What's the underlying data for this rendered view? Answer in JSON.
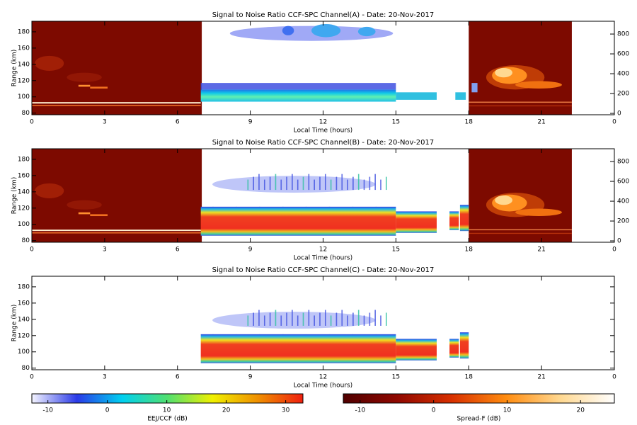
{
  "chart_data": [
    {
      "type": "heatmap",
      "title": "Signal to Noise Ratio CCF-SPC Channel(A) - Date: 20-Nov-2017",
      "xlabel": "Local Time (hours)",
      "ylabel": "Range (km)",
      "xlim": [
        0,
        24
      ],
      "xticks": [
        0,
        3,
        6,
        9,
        12,
        15,
        18,
        21,
        {
          "value": 24,
          "label": "0"
        }
      ],
      "ylim": [
        78,
        193
      ],
      "yticks": [
        80,
        100,
        120,
        140,
        160,
        180
      ],
      "y2lim": [
        -14,
        929
      ],
      "y2ticks": [
        0,
        200,
        400,
        600,
        800
      ]
    },
    {
      "type": "heatmap",
      "title": "Signal to Noise Ratio CCF-SPC Channel(B) - Date: 20-Nov-2017",
      "xlabel": "Local Time (hours)",
      "ylabel": "Range (km)",
      "xlim": [
        0,
        24
      ],
      "xticks": [
        0,
        3,
        6,
        9,
        12,
        15,
        18,
        21,
        {
          "value": 24,
          "label": "0"
        }
      ],
      "ylim": [
        78,
        193
      ],
      "yticks": [
        80,
        100,
        120,
        140,
        160,
        180
      ],
      "y2lim": [
        -14,
        929
      ],
      "y2ticks": [
        0,
        200,
        400,
        600,
        800
      ]
    },
    {
      "type": "heatmap",
      "title": "Signal to Noise Ratio CCF-SPC Channel(C) - Date: 20-Nov-2017",
      "xlabel": "Local Time (hours)",
      "ylabel": "Range (km)",
      "xlim": [
        0,
        24
      ],
      "xticks": [
        0,
        3,
        6,
        9,
        12,
        15,
        18,
        21,
        {
          "value": 24,
          "label": "0"
        }
      ],
      "ylim": [
        78,
        193
      ],
      "yticks": [
        80,
        100,
        120,
        140,
        160,
        180
      ]
    },
    {
      "type": "colorbar",
      "label": "EEJ/CCF (dB)",
      "xlim": [
        -12.7,
        32.9
      ],
      "xticks": [
        -10,
        0,
        10,
        20,
        30
      ],
      "colors": [
        "#f4f4ff",
        "#2a3ae8",
        "#00d0f0",
        "#50e070",
        "#f0f000",
        "#f09000",
        "#f02010"
      ]
    },
    {
      "type": "colorbar",
      "label": "Spread-F (dB)",
      "xlim": [
        -12.3,
        24.6
      ],
      "xticks": [
        -10,
        0,
        10,
        20
      ],
      "colors": [
        "#500000",
        "#900800",
        "#d83000",
        "#ff8c10",
        "#ffd890",
        "#ffffff"
      ]
    }
  ]
}
